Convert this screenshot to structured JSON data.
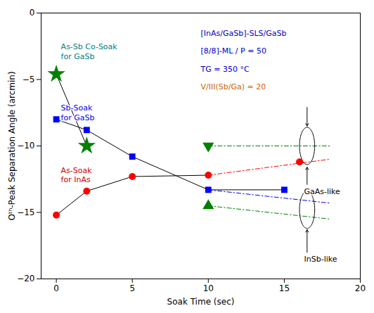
{
  "chart_data": {
    "type": "scatter",
    "xlabel": "Soak Time (sec)",
    "ylabel": "Oᵗʰ-Peak Separation Angle (arcmin)",
    "xlim": [
      -1,
      20
    ],
    "ylim": [
      -20,
      0
    ],
    "xticks": [
      0,
      5,
      10,
      15,
      20
    ],
    "yticks": [
      0,
      -5,
      -10,
      -15,
      -20
    ],
    "grid": false,
    "series": [
      {
        "type": "line",
        "color": "#000000",
        "line_style": "solid",
        "x": [
          0,
          2,
          5,
          10,
          15
        ],
        "values": [
          -8.0,
          -8.8,
          -10.8,
          -13.3,
          -13.3
        ]
      },
      {
        "type": "scatter",
        "color": "#0000FF",
        "marker": "square",
        "x": [
          0,
          2,
          5,
          10,
          15
        ],
        "values": [
          -8.0,
          -8.8,
          -10.8,
          -13.3,
          -13.3
        ]
      },
      {
        "type": "line",
        "color": "#000000",
        "line_style": "solid",
        "x": [
          0,
          2,
          5,
          10
        ],
        "values": [
          -15.2,
          -13.4,
          -12.3,
          -12.2
        ]
      },
      {
        "type": "scatter",
        "color": "#FF0000",
        "marker": "circle",
        "x": [
          0,
          2,
          5,
          10,
          16
        ],
        "values": [
          -15.2,
          -13.4,
          -12.3,
          -12.2,
          -11.2
        ]
      },
      {
        "type": "line",
        "color": "#000000",
        "line_style": "solid",
        "x": [
          0,
          2
        ],
        "values": [
          -4.6,
          -10.0
        ]
      },
      {
        "type": "scatter",
        "color": "#008000",
        "marker": "star",
        "x": [
          0,
          2
        ],
        "values": [
          -4.6,
          -10.0
        ]
      },
      {
        "type": "scatter",
        "color": "#008000",
        "marker": "triangle-down",
        "x": [
          10
        ],
        "values": [
          -10.0
        ]
      },
      {
        "type": "scatter",
        "color": "#008000",
        "marker": "triangle-up",
        "x": [
          10
        ],
        "values": [
          -14.5
        ]
      },
      {
        "type": "line",
        "color": "#008000",
        "line_style": "dashdot",
        "x": [
          10,
          18
        ],
        "values": [
          -10.0,
          -10.0
        ]
      },
      {
        "type": "line",
        "color": "#FF0000",
        "line_style": "dashdot",
        "x": [
          10,
          18
        ],
        "values": [
          -12.2,
          -11.0
        ]
      },
      {
        "type": "line",
        "color": "#0000FF",
        "line_style": "dashdot",
        "x": [
          10,
          18
        ],
        "values": [
          -13.3,
          -14.3
        ]
      },
      {
        "type": "line",
        "color": "#008000",
        "line_style": "dashdot",
        "x": [
          10,
          18
        ],
        "values": [
          -14.5,
          -15.5
        ]
      }
    ],
    "ellipses": [
      {
        "cx": 16.5,
        "cy": -10.0,
        "width": 1.0,
        "height": 2.8
      },
      {
        "cx": 16.5,
        "cy": -14.8,
        "width": 1.0,
        "height": 2.8
      }
    ],
    "arrows": [
      {
        "x1": 16.5,
        "y1": -12.9,
        "x2": 16.5,
        "y2": -11.6
      },
      {
        "x1": 16.5,
        "y1": -7.1,
        "x2": 16.5,
        "y2": -8.5
      },
      {
        "x1": 16.5,
        "y1": -18.0,
        "x2": 16.5,
        "y2": -16.3
      }
    ],
    "annotations": [
      {
        "text": "GaAs-like",
        "x": 16.3,
        "y": -13.1,
        "color": "#000000"
      },
      {
        "text": "InSb-like",
        "x": 16.3,
        "y": -18.2,
        "color": "#000000"
      },
      {
        "text": "As-Sb Co-Soak\nfor GaSb",
        "x": 0.3,
        "y": -2.2,
        "color": "#008080"
      },
      {
        "text": "Sb-Soak\nfor GaSb",
        "x": 0.3,
        "y": -6.8,
        "color": "#0000FF"
      },
      {
        "text": "As-Soak\nfor InAs",
        "x": 0.3,
        "y": -11.5,
        "color": "#CC0000"
      },
      {
        "text": "[InAs/GaSb]-SLS/GaSb",
        "x": 9.5,
        "y": -1.2,
        "color": "#0000CC"
      },
      {
        "text": "[8/8]-ML / P = 50",
        "x": 9.5,
        "y": -2.55,
        "color": "#0000CC"
      },
      {
        "text": "TG = 350 °C",
        "x": 9.5,
        "y": -3.9,
        "color": "#0000CC"
      },
      {
        "text": "V/III(Sb/Ga) = 20",
        "x": 9.5,
        "y": -5.25,
        "color": "#CC6600"
      }
    ]
  }
}
